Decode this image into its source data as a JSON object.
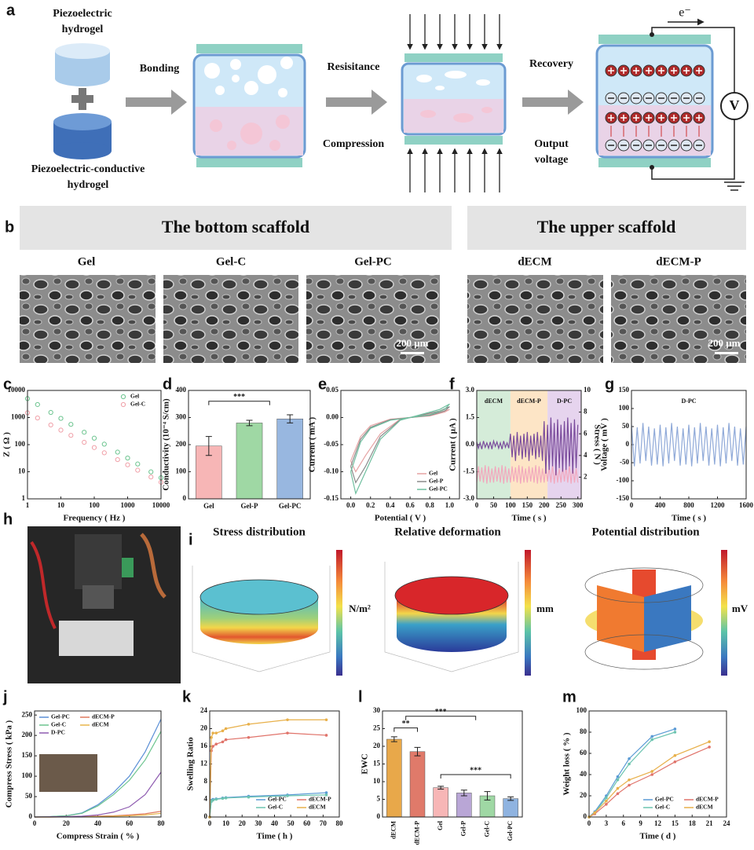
{
  "schematic": {
    "label": "a",
    "piezoelectric_hydrogel": [
      "Piezoelectric",
      "hydrogel"
    ],
    "conductive_hydrogel": [
      "Piezoelectric-conductive",
      "hydrogel"
    ],
    "bonding": "Bonding",
    "resistance": "Resisitance",
    "compression": "Compression",
    "recovery": "Recovery",
    "output": [
      "Output",
      "voltage"
    ],
    "electron": "e⁻",
    "voltmeter": "V"
  },
  "sem": {
    "label": "b",
    "groups": [
      "The bottom scaffold",
      "The upper scaffold"
    ],
    "samples": [
      "Gel",
      "Gel-C",
      "Gel-PC",
      "dECM",
      "dECM-P"
    ],
    "scale_bars": [
      "200 μm",
      "200 μm"
    ]
  },
  "photo": {
    "label": "h"
  },
  "simulation": {
    "label": "i",
    "titles": [
      "Stress distribution",
      "Relative deformation",
      "Potential distribution"
    ],
    "units": [
      "N/m²",
      "mm",
      "mV"
    ]
  },
  "chart_data": [
    {
      "label": "c",
      "type": "scatter",
      "xlog": true,
      "ylog": true,
      "xlim": [
        1,
        10000
      ],
      "ylim": [
        1,
        10000
      ],
      "xticks": [
        1,
        10,
        100,
        1000,
        10000
      ],
      "yticks": [
        1,
        10,
        100,
        1000,
        10000
      ],
      "xlabel": "Frequency ( Hz )",
      "ylabel": "Z ( Ω )",
      "legend": "upper right",
      "x": [
        1,
        2,
        5,
        10,
        20,
        50,
        100,
        200,
        500,
        1000,
        2000,
        5000,
        10000
      ],
      "series": [
        {
          "name": "Gel",
          "color": "#6cc48f",
          "values": [
            5000,
            3010,
            1540,
            931,
            560,
            287,
            173,
            104,
            53,
            32,
            19.3,
            9.9,
            6.0
          ]
        },
        {
          "name": "Gel-C",
          "color": "#f0a0a8",
          "values": [
            1500,
            963,
            533,
            343,
            220,
            122,
            78,
            50,
            28,
            18,
            11.4,
            6.4,
            4.1
          ]
        }
      ]
    },
    {
      "label": "d",
      "type": "bar",
      "categories": [
        "Gel",
        "Gel-P",
        "Gel-PC"
      ],
      "values": [
        195,
        280,
        295
      ],
      "errors": [
        35,
        10,
        15
      ],
      "colors": [
        "#f7b6b6",
        "#9fd8a4",
        "#98b7e0"
      ],
      "ylim": [
        0,
        400
      ],
      "yticks": [
        0,
        100,
        200,
        300,
        400
      ],
      "ylabel": "Conductivity (10⁻⁴ S/cm)",
      "annotations": [
        "***"
      ]
    },
    {
      "label": "e",
      "type": "line",
      "xlim": [
        -0.1,
        1.1
      ],
      "ylim": [
        -0.15,
        0.05
      ],
      "xticks": [
        {
          "value": 0,
          "label": "0.0"
        },
        0.2,
        0.4,
        0.6,
        0.8,
        {
          "value": 1,
          "label": "1.0"
        }
      ],
      "yticks": [
        {
          "value": -0.15,
          "label": "-0.15"
        },
        {
          "value": -0.1,
          "label": "-0.10"
        },
        {
          "value": -0.05,
          "label": "-0.05"
        },
        {
          "value": 0,
          "label": "0.00"
        },
        {
          "value": 0.05,
          "label": "0.05"
        }
      ],
      "xlabel": "Potential ( V )",
      "ylabel": "Current ( mA )",
      "legend": "lower right",
      "x": [
        0.0,
        0.1,
        0.2,
        0.4,
        0.6,
        0.8,
        0.95,
        1.0,
        0.9,
        0.7,
        0.5,
        0.3,
        0.15,
        0.05,
        0.0
      ],
      "series": [
        {
          "name": "Gel",
          "color": "#e6a3a3",
          "values": [
            -0.08,
            -0.035,
            -0.015,
            -0.003,
            0.0,
            0.003,
            0.01,
            0.015,
            0.01,
            0.003,
            -0.003,
            -0.03,
            -0.07,
            -0.1,
            -0.08
          ]
        },
        {
          "name": "Gel-P",
          "color": "#8a8a8a",
          "values": [
            -0.09,
            -0.04,
            -0.018,
            -0.004,
            0.0,
            0.004,
            0.012,
            0.02,
            0.012,
            0.004,
            -0.004,
            -0.035,
            -0.09,
            -0.12,
            -0.09
          ]
        },
        {
          "name": "Gel-PC",
          "color": "#6fbf9f",
          "values": [
            -0.1,
            -0.045,
            -0.02,
            -0.005,
            0.0,
            0.005,
            0.015,
            0.025,
            0.015,
            0.005,
            -0.005,
            -0.04,
            -0.1,
            -0.14,
            -0.1
          ]
        }
      ]
    },
    {
      "label": "f",
      "type": "line",
      "xlim": [
        0,
        310
      ],
      "ylim": [
        -3,
        3
      ],
      "y2lim": [
        0,
        10
      ],
      "xticks": [
        0,
        50,
        100,
        150,
        200,
        250,
        300
      ],
      "yticks": [
        {
          "value": -3,
          "label": "-3.0"
        },
        -1.5,
        {
          "value": 0,
          "label": "0.0"
        },
        1.5,
        {
          "value": 3,
          "label": "3.0"
        }
      ],
      "y2ticks": [
        2,
        4,
        6,
        8,
        10
      ],
      "xlabel": "Time ( s )",
      "ylabel": "Current ( μA )",
      "y2label": "Stress ( N )",
      "regions": [
        {
          "name": "dECM",
          "range": [
            0,
            100
          ],
          "color": "#d5ecd9"
        },
        {
          "name": "dECM-P",
          "range": [
            100,
            210
          ],
          "color": "#fde5c6"
        },
        {
          "name": "D-PC",
          "range": [
            210,
            310
          ],
          "color": "#e6d4ee"
        }
      ],
      "x": [
        0,
        5,
        10,
        15,
        20,
        25,
        30,
        35,
        40,
        45,
        50,
        55,
        60,
        65,
        70,
        75,
        80,
        85,
        90,
        95,
        100,
        105,
        110,
        115,
        120,
        125,
        130,
        135,
        140,
        145,
        150,
        155,
        160,
        165,
        170,
        175,
        180,
        185,
        190,
        195,
        200,
        205,
        210,
        215,
        220,
        225,
        230,
        235,
        240,
        245,
        250,
        255,
        260,
        265,
        270,
        275,
        280,
        285,
        290,
        295,
        300
      ],
      "series": [
        {
          "color": "#f2a7bd",
          "axis": "y2",
          "values": [
            1.5,
            3,
            1.6,
            2.9,
            1.5,
            3.1,
            1.4,
            3,
            1.5,
            2.8,
            1.5,
            3,
            1.6,
            2.9,
            1.5,
            3.1,
            1.4,
            3,
            1.5,
            2.8,
            1.5,
            3,
            1.6,
            2.9,
            1.5,
            3.1,
            1.4,
            3,
            1.5,
            2.8,
            1.5,
            3,
            1.6,
            2.9,
            1.5,
            3.1,
            1.4,
            3,
            1.5,
            2.8,
            1.5,
            3,
            1.6,
            2.9,
            1.5,
            3.1,
            1.4,
            3,
            1.5,
            2.8,
            1.5,
            3,
            1.6,
            2.9,
            1.5,
            3.1,
            1.4,
            3,
            1.5,
            2.8,
            1.5
          ]
        },
        {
          "color": "#7a4b9c",
          "values": [
            0.15,
            -0.2,
            0.1,
            -0.25,
            0.2,
            -0.15,
            0.1,
            -0.2,
            0.15,
            -0.25,
            0.2,
            -0.1,
            0.15,
            -0.2,
            0.1,
            -0.25,
            0.2,
            -0.15,
            0.1,
            -0.2,
            0.6,
            -0.7,
            0.5,
            -0.9,
            0.7,
            -0.6,
            0.5,
            -0.8,
            0.6,
            -0.7,
            0.7,
            -0.9,
            0.5,
            -0.6,
            0.6,
            -0.8,
            0.7,
            -0.7,
            0.5,
            -0.9,
            1.3,
            -1.6,
            1.1,
            -1.4,
            1.5,
            -1.2,
            1.2,
            -1.7,
            1.4,
            -1.3,
            1.1,
            -1.5,
            1.3,
            -1.4,
            1.5,
            -1.2,
            1.2,
            -1.6,
            1.4,
            -1.3,
            1.1
          ]
        }
      ]
    },
    {
      "label": "g",
      "type": "line",
      "xlim": [
        0,
        1600
      ],
      "ylim": [
        -150,
        150
      ],
      "xticks": [
        0,
        400,
        800,
        1200,
        1600
      ],
      "yticks": [
        -150,
        -100,
        -50,
        0,
        50,
        100,
        150
      ],
      "xlabel": "Time ( s )",
      "ylabel": "Voltage ( mV )",
      "annotations": [
        "D-PC"
      ],
      "x": [
        0,
        40,
        80,
        120,
        160,
        200,
        240,
        280,
        320,
        360,
        400,
        440,
        480,
        520,
        560,
        600,
        640,
        680,
        720,
        760,
        800,
        840,
        880,
        920,
        960,
        1000,
        1040,
        1080,
        1120,
        1160,
        1200,
        1240,
        1280,
        1320,
        1360,
        1400,
        1440,
        1480,
        1520,
        1560,
        1600
      ],
      "series": [
        {
          "color": "#8fa9d8",
          "values": [
            55,
            -60,
            48,
            -52,
            60,
            -45,
            50,
            -58,
            45,
            -55,
            55,
            -60,
            48,
            -52,
            60,
            -45,
            50,
            -58,
            45,
            -55,
            55,
            -60,
            48,
            -52,
            60,
            -45,
            50,
            -58,
            45,
            -55,
            55,
            -60,
            48,
            -52,
            60,
            -45,
            50,
            -58,
            45,
            -55,
            50
          ]
        }
      ]
    },
    {
      "label": "j",
      "type": "line",
      "xlim": [
        0,
        80
      ],
      "ylim": [
        0,
        260
      ],
      "xticks": [
        0,
        20,
        40,
        60,
        80
      ],
      "yticks": [
        0,
        50,
        100,
        150,
        200,
        250
      ],
      "xlabel": "Compress Strain ( % )",
      "ylabel": "Compress Stress ( kPa )",
      "legend": "upper left",
      "x": [
        0,
        10,
        20,
        30,
        40,
        50,
        60,
        70,
        80
      ],
      "series": [
        {
          "name": "Gel-PC",
          "color": "#5b8fd6",
          "values": [
            0,
            1,
            3,
            10,
            30,
            60,
            100,
            160,
            240
          ]
        },
        {
          "name": "dECM-P",
          "color": "#e07a5f",
          "values": [
            0,
            0,
            0.5,
            1,
            2,
            3,
            5,
            8,
            14
          ]
        },
        {
          "name": "Gel-C",
          "color": "#6cc48f",
          "values": [
            0,
            1,
            3,
            9,
            27,
            55,
            90,
            140,
            210
          ]
        },
        {
          "name": "dECM",
          "color": "#e8b64a",
          "values": [
            0,
            0,
            0.3,
            0.5,
            1,
            2,
            3,
            5,
            9
          ]
        },
        {
          "name": "D-PC",
          "color": "#8e5bb0",
          "values": [
            0,
            0.5,
            1,
            2,
            5,
            12,
            25,
            55,
            110
          ]
        }
      ]
    },
    {
      "label": "k",
      "type": "line",
      "markers": true,
      "xlim": [
        0,
        80
      ],
      "ylim": [
        0,
        24
      ],
      "xticks": [
        0,
        10,
        20,
        30,
        40,
        50,
        60,
        70,
        80
      ],
      "yticks": [
        0,
        4,
        8,
        12,
        16,
        20,
        24
      ],
      "xlabel": "Time ( h )",
      "ylabel": "Swelling Ratio",
      "legend": "lower right",
      "x": [
        0,
        1,
        2,
        4,
        8,
        10,
        24,
        48,
        72
      ],
      "series": [
        {
          "name": "Gel-PC",
          "color": "#5b9bd5",
          "values": [
            0,
            3.8,
            4,
            4.1,
            4.3,
            4.4,
            4.7,
            5,
            5.5
          ]
        },
        {
          "name": "dECM-P",
          "color": "#e0736a",
          "values": [
            0,
            15,
            16,
            16.5,
            17,
            17.5,
            18,
            19,
            18.5
          ]
        },
        {
          "name": "Gel-C",
          "color": "#6cc4b0",
          "values": [
            0,
            3.5,
            3.8,
            4,
            4.2,
            4.3,
            4.5,
            4.8,
            5
          ]
        },
        {
          "name": "dECM",
          "color": "#e8b04a",
          "values": [
            0,
            18,
            19,
            19,
            19.5,
            20,
            21,
            22,
            22
          ]
        }
      ]
    },
    {
      "label": "l",
      "type": "bar",
      "categories": [
        "dECM",
        "dECM-P",
        "Gel",
        "Gel-P",
        "Gel-C",
        "Gel-PC"
      ],
      "values": [
        22,
        18.5,
        8.3,
        6.8,
        6,
        5.2
      ],
      "errors": [
        0.7,
        1.2,
        0.4,
        0.8,
        1.2,
        0.5
      ],
      "colors": [
        "#e8a84a",
        "#e07a6a",
        "#f7b6b6",
        "#b9a6d6",
        "#9fd8a4",
        "#8fb3e0"
      ],
      "ylim": [
        0,
        30
      ],
      "yticks": [
        0,
        5,
        10,
        15,
        20,
        25,
        30
      ],
      "ylabel": "EWC",
      "annotations": [
        "**",
        "***",
        "***"
      ]
    },
    {
      "label": "m",
      "type": "line",
      "markers": true,
      "xlim": [
        0,
        24
      ],
      "ylim": [
        0,
        100
      ],
      "xticks": [
        0,
        3,
        6,
        9,
        12,
        15,
        18,
        21,
        24
      ],
      "yticks": [
        0,
        20,
        40,
        60,
        80,
        100
      ],
      "xlabel": "Time ( d )",
      "ylabel": "Weight loss ( % )",
      "legend": "lower right",
      "x": [
        0,
        1,
        3,
        5,
        7,
        11,
        15,
        21
      ],
      "series": [
        {
          "name": "Gel-PC",
          "color": "#5b9bd5",
          "values": [
            0,
            5,
            20,
            38,
            55,
            76,
            83,
            null
          ]
        },
        {
          "name": "dECM-P",
          "color": "#e0736a",
          "values": [
            0,
            3,
            12,
            22,
            30,
            40,
            52,
            66
          ]
        },
        {
          "name": "Gel-C",
          "color": "#6cc4b0",
          "values": [
            0,
            4,
            18,
            35,
            50,
            73,
            80,
            null
          ]
        },
        {
          "name": "dECM",
          "color": "#e8b04a",
          "values": [
            0,
            4,
            15,
            27,
            35,
            43,
            58,
            71
          ]
        }
      ]
    }
  ]
}
